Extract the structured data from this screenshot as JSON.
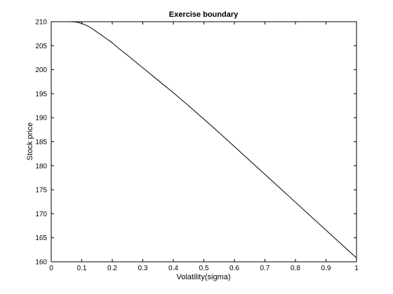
{
  "chart_data": {
    "type": "line",
    "title": "Exercise boundary",
    "xlabel": "Volatility(sigma)",
    "ylabel": "Stock price",
    "xlim": [
      0,
      1
    ],
    "ylim": [
      160,
      210
    ],
    "xticks": [
      "0",
      "0.1",
      "0.2",
      "0.3",
      "0.4",
      "0.5",
      "0.6",
      "0.7",
      "0.8",
      "0.9",
      "1"
    ],
    "yticks": [
      "160",
      "165",
      "170",
      "175",
      "180",
      "185",
      "190",
      "195",
      "200",
      "205",
      "210"
    ],
    "grid": false,
    "line_color": "#000000",
    "series": [
      {
        "x": [
          0,
          0.02,
          0.04,
          0.06,
          0.08,
          0.1,
          0.12,
          0.14,
          0.16,
          0.18,
          0.2,
          0.22,
          0.25,
          0.3,
          0.35,
          0.4,
          0.45,
          0.5,
          0.55,
          0.6,
          0.65,
          0.7,
          0.75,
          0.8,
          0.85,
          0.9,
          0.95,
          1.0
        ],
        "values": [
          210,
          210,
          210,
          210,
          209.95,
          209.65,
          209.1,
          208.3,
          207.4,
          206.5,
          205.6,
          204.5,
          203.0,
          200.4,
          197.8,
          195.2,
          192.5,
          189.7,
          186.9,
          184.0,
          181.1,
          178.2,
          175.3,
          172.4,
          169.5,
          166.6,
          163.7,
          160.8
        ]
      }
    ]
  }
}
